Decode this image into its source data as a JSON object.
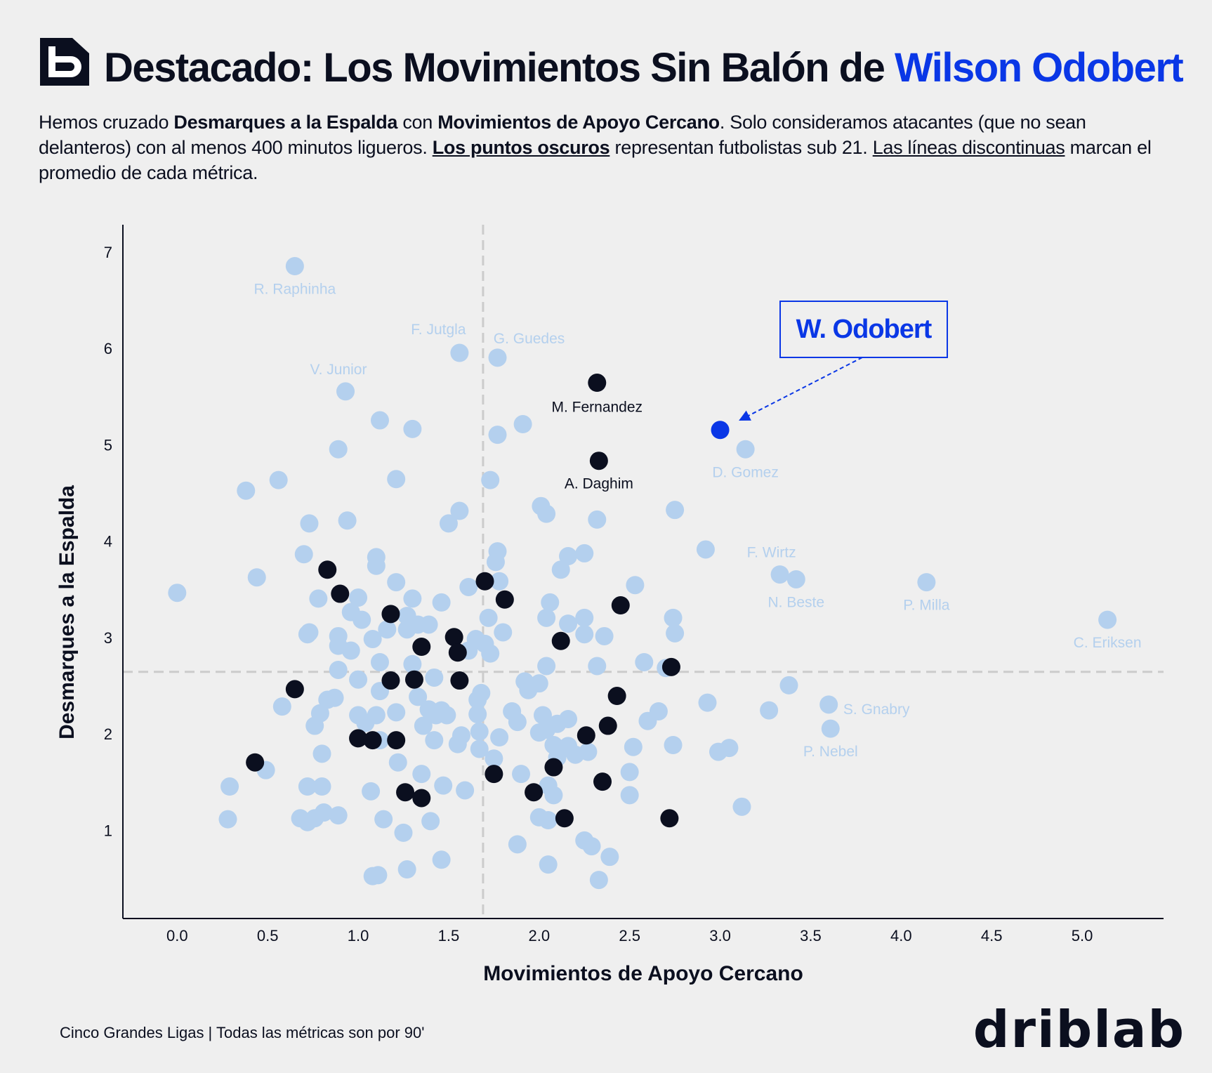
{
  "header": {
    "title_prefix": "Destacado: Los Movimientos Sin Balón de ",
    "title_highlight": "Wilson Odobert",
    "sub_1": "Hemos cruzado ",
    "sub_b1": "Desmarques a la Espalda",
    "sub_2": " con ",
    "sub_b2": "Movimientos de Apoyo Cercano",
    "sub_3": ". Solo consideramos atacantes (que no sean delanteros) con al menos 400 minutos ligueros. ",
    "sub_b3": "Los puntos oscuros",
    "sub_4": " representan futbolistas sub 21. ",
    "sub_u1": "Las líneas discontinuas",
    "sub_5": " marcan el promedio de cada métrica."
  },
  "footer": {
    "note": "Cinco Grandes Ligas | Todas las métricas son por 90'",
    "brand": "driblab"
  },
  "colors": {
    "background": "#efefef",
    "point_regular": "#b4d0ee",
    "point_u21": "#0b0f1f",
    "highlight": "#0a37e6",
    "text": "#0b0f1f",
    "mean_line": "#cccccc"
  },
  "chart_data": {
    "type": "scatter",
    "xlabel": "Movimientos de Apoyo Cercano",
    "ylabel": "Desmarques a la Espalda",
    "xlim": [
      -0.3,
      5.45
    ],
    "ylim": [
      0.1,
      7.3
    ],
    "xticks": [
      "0.0",
      "0.5",
      "1.0",
      "1.5",
      "2.0",
      "2.5",
      "3.0",
      "3.5",
      "4.0",
      "4.5",
      "5.0"
    ],
    "yticks": [
      "1",
      "2",
      "3",
      "4",
      "5",
      "6",
      "7"
    ],
    "mean_x": 1.69,
    "mean_y": 2.66,
    "highlight": {
      "name": "W. Odobert",
      "x": 3.0,
      "y": 5.17
    },
    "labeled": [
      {
        "name": "R. Raphinha",
        "x": 0.65,
        "y": 6.87,
        "group": "regular"
      },
      {
        "name": "F. Jutgla",
        "x": 1.56,
        "y": 5.97,
        "group": "regular"
      },
      {
        "name": "G. Guedes",
        "x": 1.77,
        "y": 5.92,
        "group": "regular"
      },
      {
        "name": "V. Junior",
        "x": 0.93,
        "y": 5.57,
        "group": "regular"
      },
      {
        "name": "M. Fernandez",
        "x": 2.32,
        "y": 5.66,
        "group": "u21"
      },
      {
        "name": "A. Daghim",
        "x": 2.33,
        "y": 4.85,
        "group": "u21"
      },
      {
        "name": "D. Gomez",
        "x": 3.14,
        "y": 4.97,
        "group": "regular"
      },
      {
        "name": "F. Wirtz",
        "x": 3.33,
        "y": 3.67,
        "group": "regular"
      },
      {
        "name": "N. Beste",
        "x": 3.42,
        "y": 3.62,
        "group": "regular"
      },
      {
        "name": "P. Milla",
        "x": 4.14,
        "y": 3.59,
        "group": "regular"
      },
      {
        "name": "C. Eriksen",
        "x": 5.14,
        "y": 3.2,
        "group": "regular"
      },
      {
        "name": "S. Gnabry",
        "x": 3.6,
        "y": 2.32,
        "group": "regular"
      },
      {
        "name": "P. Nebel",
        "x": 3.61,
        "y": 2.07,
        "group": "regular"
      }
    ],
    "u21_points": [
      [
        0.83,
        3.72
      ],
      [
        0.9,
        3.47
      ],
      [
        1.18,
        3.26
      ],
      [
        1.35,
        2.92
      ],
      [
        1.53,
        3.02
      ],
      [
        1.55,
        2.86
      ],
      [
        1.56,
        2.57
      ],
      [
        1.18,
        2.57
      ],
      [
        1.31,
        2.58
      ],
      [
        0.65,
        2.48
      ],
      [
        1.0,
        1.97
      ],
      [
        1.08,
        1.95
      ],
      [
        1.21,
        1.95
      ],
      [
        0.43,
        1.72
      ],
      [
        1.26,
        1.41
      ],
      [
        1.35,
        1.35
      ],
      [
        1.7,
        3.6
      ],
      [
        1.81,
        3.41
      ],
      [
        1.75,
        1.6
      ],
      [
        1.97,
        1.41
      ],
      [
        2.08,
        1.67
      ],
      [
        2.14,
        1.14
      ],
      [
        2.12,
        2.98
      ],
      [
        2.26,
        2.0
      ],
      [
        2.38,
        2.1
      ],
      [
        2.43,
        2.41
      ],
      [
        2.45,
        3.35
      ],
      [
        2.35,
        1.52
      ],
      [
        2.73,
        2.71
      ],
      [
        2.72,
        1.14
      ]
    ],
    "regular_points": [
      [
        0.0,
        3.48
      ],
      [
        0.38,
        4.54
      ],
      [
        0.44,
        3.64
      ],
      [
        0.56,
        4.65
      ],
      [
        0.7,
        3.88
      ],
      [
        0.73,
        4.2
      ],
      [
        0.78,
        3.42
      ],
      [
        0.73,
        3.07
      ],
      [
        0.72,
        3.05
      ],
      [
        0.89,
        4.97
      ],
      [
        0.94,
        4.23
      ],
      [
        1.12,
        5.27
      ],
      [
        1.3,
        5.18
      ],
      [
        1.21,
        4.66
      ],
      [
        1.1,
        3.85
      ],
      [
        1.1,
        3.76
      ],
      [
        1.21,
        3.59
      ],
      [
        0.96,
        3.28
      ],
      [
        1.0,
        3.43
      ],
      [
        1.02,
        3.2
      ],
      [
        0.89,
        3.03
      ],
      [
        0.89,
        2.93
      ],
      [
        0.96,
        2.88
      ],
      [
        0.89,
        2.68
      ],
      [
        1.0,
        2.58
      ],
      [
        1.08,
        3.0
      ],
      [
        1.12,
        2.76
      ],
      [
        1.12,
        2.46
      ],
      [
        1.16,
        3.1
      ],
      [
        1.27,
        3.24
      ],
      [
        1.27,
        3.1
      ],
      [
        1.3,
        3.42
      ],
      [
        1.33,
        3.15
      ],
      [
        1.39,
        3.15
      ],
      [
        1.3,
        2.74
      ],
      [
        1.33,
        2.4
      ],
      [
        1.42,
        2.6
      ],
      [
        1.46,
        3.38
      ],
      [
        0.49,
        1.64
      ],
      [
        0.58,
        2.3
      ],
      [
        0.76,
        2.1
      ],
      [
        0.79,
        2.23
      ],
      [
        0.83,
        2.37
      ],
      [
        0.87,
        2.39
      ],
      [
        0.8,
        1.81
      ],
      [
        0.72,
        1.47
      ],
      [
        0.8,
        1.47
      ],
      [
        0.68,
        1.14
      ],
      [
        0.72,
        1.1
      ],
      [
        0.76,
        1.14
      ],
      [
        0.81,
        1.2
      ],
      [
        0.89,
        1.17
      ],
      [
        0.29,
        1.47
      ],
      [
        0.28,
        1.13
      ],
      [
        1.0,
        2.21
      ],
      [
        1.04,
        2.13
      ],
      [
        1.1,
        2.21
      ],
      [
        1.12,
        1.95
      ],
      [
        1.21,
        2.24
      ],
      [
        1.22,
        1.72
      ],
      [
        1.39,
        2.27
      ],
      [
        1.36,
        2.1
      ],
      [
        1.43,
        2.21
      ],
      [
        1.46,
        2.26
      ],
      [
        1.49,
        2.21
      ],
      [
        1.42,
        1.95
      ],
      [
        1.55,
        1.91
      ],
      [
        1.57,
        2.0
      ],
      [
        1.35,
        1.6
      ],
      [
        1.47,
        1.48
      ],
      [
        1.59,
        1.43
      ],
      [
        1.07,
        1.42
      ],
      [
        1.14,
        1.13
      ],
      [
        1.25,
        0.99
      ],
      [
        1.4,
        1.11
      ],
      [
        1.27,
        0.61
      ],
      [
        1.46,
        0.71
      ],
      [
        1.08,
        0.54
      ],
      [
        1.11,
        0.55
      ],
      [
        1.68,
        2.44
      ],
      [
        1.66,
        2.37
      ],
      [
        1.66,
        2.22
      ],
      [
        1.67,
        2.04
      ],
      [
        1.67,
        1.86
      ],
      [
        1.78,
        1.98
      ],
      [
        1.75,
        1.76
      ],
      [
        1.61,
        2.88
      ],
      [
        1.7,
        2.95
      ],
      [
        1.72,
        3.22
      ],
      [
        1.65,
        3.0
      ],
      [
        1.73,
        2.85
      ],
      [
        1.8,
        3.07
      ],
      [
        1.61,
        3.54
      ],
      [
        1.77,
        3.91
      ],
      [
        1.76,
        3.8
      ],
      [
        1.78,
        3.6
      ],
      [
        1.73,
        4.65
      ],
      [
        1.56,
        4.33
      ],
      [
        1.5,
        4.2
      ],
      [
        1.77,
        5.12
      ],
      [
        1.91,
        5.23
      ],
      [
        2.01,
        4.38
      ],
      [
        2.04,
        4.3
      ],
      [
        2.32,
        4.24
      ],
      [
        2.16,
        3.86
      ],
      [
        2.25,
        3.89
      ],
      [
        2.12,
        3.72
      ],
      [
        2.75,
        4.34
      ],
      [
        2.92,
        3.93
      ],
      [
        2.53,
        3.56
      ],
      [
        2.06,
        3.38
      ],
      [
        2.04,
        3.22
      ],
      [
        2.16,
        3.16
      ],
      [
        2.25,
        3.22
      ],
      [
        2.25,
        3.05
      ],
      [
        2.36,
        3.03
      ],
      [
        2.74,
        3.22
      ],
      [
        2.75,
        3.06
      ],
      [
        2.04,
        2.72
      ],
      [
        2.32,
        2.72
      ],
      [
        2.58,
        2.76
      ],
      [
        2.7,
        2.7
      ],
      [
        1.85,
        2.25
      ],
      [
        1.88,
        2.14
      ],
      [
        1.92,
        2.56
      ],
      [
        1.94,
        2.47
      ],
      [
        2.0,
        2.54
      ],
      [
        2.02,
        2.21
      ],
      [
        2.0,
        2.03
      ],
      [
        2.04,
        2.06
      ],
      [
        2.1,
        2.12
      ],
      [
        2.16,
        2.17
      ],
      [
        2.08,
        1.9
      ],
      [
        2.13,
        1.86
      ],
      [
        2.16,
        1.89
      ],
      [
        2.2,
        1.8
      ],
      [
        2.27,
        1.83
      ],
      [
        2.1,
        1.77
      ],
      [
        2.66,
        2.25
      ],
      [
        2.6,
        2.15
      ],
      [
        2.52,
        1.88
      ],
      [
        2.74,
        1.9
      ],
      [
        1.9,
        1.6
      ],
      [
        2.05,
        1.48
      ],
      [
        2.08,
        1.38
      ],
      [
        2.0,
        1.15
      ],
      [
        2.05,
        1.12
      ],
      [
        1.88,
        0.87
      ],
      [
        2.25,
        0.91
      ],
      [
        2.29,
        0.85
      ],
      [
        2.05,
        0.66
      ],
      [
        2.39,
        0.74
      ],
      [
        2.33,
        0.5
      ],
      [
        2.5,
        1.62
      ],
      [
        2.5,
        1.38
      ],
      [
        2.93,
        2.34
      ],
      [
        2.99,
        1.83
      ],
      [
        3.05,
        1.87
      ],
      [
        3.12,
        1.26
      ],
      [
        3.27,
        2.26
      ],
      [
        3.38,
        2.52
      ]
    ]
  }
}
